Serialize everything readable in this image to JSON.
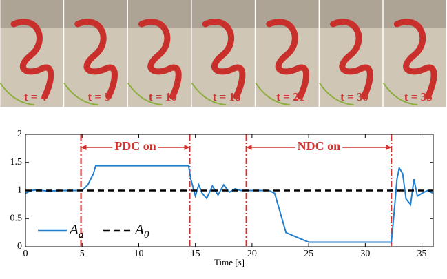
{
  "photo_labels": [
    "t = 4",
    "t = 5",
    "t = 10",
    "t = 18",
    "t = 21",
    "t = 30",
    "t = 35"
  ],
  "chart_data": {
    "type": "line",
    "x_label": "Time [s]",
    "xlim": [
      0,
      36
    ],
    "ylim": [
      0,
      2
    ],
    "xticks": [
      0,
      5,
      10,
      15,
      20,
      25,
      30,
      35
    ],
    "yticks": [
      0,
      0.5,
      1,
      1.5,
      2
    ],
    "series": [
      {
        "name": "A_d",
        "color": "#1f7fd0",
        "style": "solid",
        "x": [
          0,
          0.5,
          1,
          2,
          3,
          4,
          5,
          5.5,
          6,
          6.2,
          7,
          10,
          14,
          14.4,
          14.6,
          15,
          15.3,
          15.6,
          16,
          16.5,
          17,
          17.5,
          18,
          18.5,
          19,
          20,
          21,
          21.5,
          22,
          22.5,
          23,
          25,
          30,
          32,
          32.3,
          32.5,
          32.8,
          33,
          33.3,
          33.6,
          34,
          34.3,
          34.6,
          35,
          35.5,
          36
        ],
        "values": [
          0.95,
          1,
          1.01,
          0.99,
          1,
          1,
          1,
          1.1,
          1.3,
          1.44,
          1.44,
          1.44,
          1.44,
          1.44,
          1.2,
          0.9,
          1.1,
          0.95,
          0.86,
          1.08,
          0.92,
          1.1,
          0.97,
          1.03,
          1,
          1,
          1,
          1,
          0.95,
          0.6,
          0.25,
          0.08,
          0.08,
          0.08,
          0.08,
          0.5,
          1.2,
          1.4,
          1.3,
          0.85,
          0.75,
          1.2,
          0.9,
          0.95,
          1.0,
          0.95
        ]
      },
      {
        "name": "A_0",
        "color": "#000000",
        "style": "dashed",
        "x": [
          0,
          36
        ],
        "values": [
          1,
          1
        ]
      }
    ],
    "vlines": [
      4.9,
      14.5,
      19.5,
      32.3
    ],
    "vline_color": "#d1342f",
    "annotations": [
      {
        "text": "PDC on",
        "x0": 4.9,
        "x1": 14.5
      },
      {
        "text": "NDC on",
        "x0": 19.5,
        "x1": 32.3
      }
    ]
  }
}
